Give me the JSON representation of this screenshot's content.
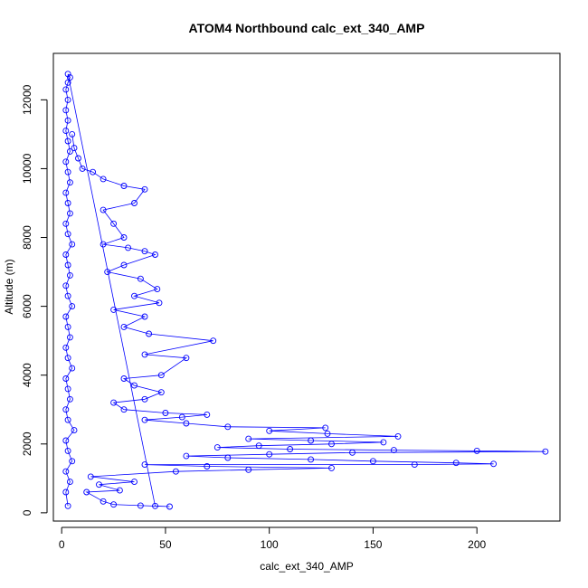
{
  "chart_data": {
    "type": "scatter",
    "title": "ATOM4 Northbound calc_ext_340_AMP",
    "xlabel": "calc_ext_340_AMP",
    "ylabel": "Altitude (m)",
    "xlim": [
      -4,
      240
    ],
    "ylim": [
      -240,
      13350
    ],
    "xticks": [
      0,
      50,
      100,
      150,
      200
    ],
    "yticks": [
      0,
      2000,
      4000,
      6000,
      8000,
      10000,
      12000
    ],
    "grid": false,
    "legend": "none",
    "marker": "open-circle",
    "connect_points": true,
    "series_color": "#0000ff",
    "series": [
      {
        "points": [
          [
            3,
            200
          ],
          [
            2,
            600
          ],
          [
            4,
            900
          ],
          [
            2,
            1200
          ],
          [
            5,
            1500
          ],
          [
            3,
            1800
          ],
          [
            2,
            2100
          ],
          [
            6,
            2400
          ],
          [
            3,
            2700
          ],
          [
            2,
            3000
          ],
          [
            4,
            3300
          ],
          [
            3,
            3600
          ],
          [
            2,
            3900
          ],
          [
            5,
            4200
          ],
          [
            3,
            4500
          ],
          [
            2,
            4800
          ],
          [
            4,
            5100
          ],
          [
            3,
            5400
          ],
          [
            2,
            5700
          ],
          [
            5,
            6000
          ],
          [
            3,
            6300
          ],
          [
            2,
            6600
          ],
          [
            4,
            6900
          ],
          [
            3,
            7200
          ],
          [
            2,
            7500
          ],
          [
            5,
            7800
          ],
          [
            3,
            8100
          ],
          [
            2,
            8400
          ],
          [
            4,
            8700
          ],
          [
            3,
            9000
          ],
          [
            2,
            9300
          ],
          [
            4,
            9600
          ],
          [
            3,
            9900
          ],
          [
            2,
            10200
          ],
          [
            4,
            10500
          ],
          [
            3,
            10800
          ],
          [
            2,
            11100
          ],
          [
            3,
            11400
          ],
          [
            2,
            11700
          ],
          [
            3,
            12000
          ],
          [
            2,
            12300
          ],
          [
            3,
            12500
          ],
          [
            4,
            12650
          ],
          [
            3,
            12750
          ],
          [
            45,
            200
          ],
          [
            52,
            180
          ],
          [
            38,
            210
          ],
          [
            25,
            240
          ],
          [
            20,
            330
          ],
          [
            12,
            600
          ],
          [
            28,
            650
          ],
          [
            18,
            820
          ],
          [
            35,
            900
          ],
          [
            14,
            1050
          ],
          [
            55,
            1200
          ],
          [
            90,
            1250
          ],
          [
            130,
            1300
          ],
          [
            70,
            1350
          ],
          [
            40,
            1400
          ],
          [
            170,
            1400
          ],
          [
            208,
            1420
          ],
          [
            190,
            1450
          ],
          [
            150,
            1500
          ],
          [
            120,
            1550
          ],
          [
            80,
            1600
          ],
          [
            60,
            1650
          ],
          [
            100,
            1700
          ],
          [
            140,
            1750
          ],
          [
            233,
            1780
          ],
          [
            200,
            1800
          ],
          [
            160,
            1820
          ],
          [
            110,
            1850
          ],
          [
            75,
            1900
          ],
          [
            95,
            1950
          ],
          [
            130,
            2000
          ],
          [
            155,
            2050
          ],
          [
            120,
            2100
          ],
          [
            90,
            2150
          ],
          [
            162,
            2220
          ],
          [
            128,
            2300
          ],
          [
            100,
            2380
          ],
          [
            127,
            2470
          ],
          [
            80,
            2500
          ],
          [
            60,
            2600
          ],
          [
            40,
            2700
          ],
          [
            58,
            2780
          ],
          [
            70,
            2850
          ],
          [
            50,
            2900
          ],
          [
            30,
            3000
          ],
          [
            25,
            3200
          ],
          [
            40,
            3300
          ],
          [
            48,
            3500
          ],
          [
            35,
            3700
          ],
          [
            30,
            3900
          ],
          [
            48,
            4000
          ],
          [
            60,
            4500
          ],
          [
            40,
            4600
          ],
          [
            73,
            5000
          ],
          [
            42,
            5200
          ],
          [
            30,
            5400
          ],
          [
            40,
            5700
          ],
          [
            25,
            5900
          ],
          [
            47,
            6100
          ],
          [
            35,
            6300
          ],
          [
            46,
            6500
          ],
          [
            38,
            6800
          ],
          [
            22,
            7000
          ],
          [
            30,
            7200
          ],
          [
            45,
            7500
          ],
          [
            40,
            7600
          ],
          [
            32,
            7700
          ],
          [
            20,
            7800
          ],
          [
            30,
            8000
          ],
          [
            25,
            8400
          ],
          [
            20,
            8800
          ],
          [
            35,
            9000
          ],
          [
            40,
            9400
          ],
          [
            30,
            9500
          ],
          [
            20,
            9700
          ],
          [
            15,
            9900
          ],
          [
            10,
            10000
          ],
          [
            8,
            10300
          ],
          [
            6,
            10600
          ],
          [
            5,
            11000
          ]
        ]
      }
    ]
  }
}
